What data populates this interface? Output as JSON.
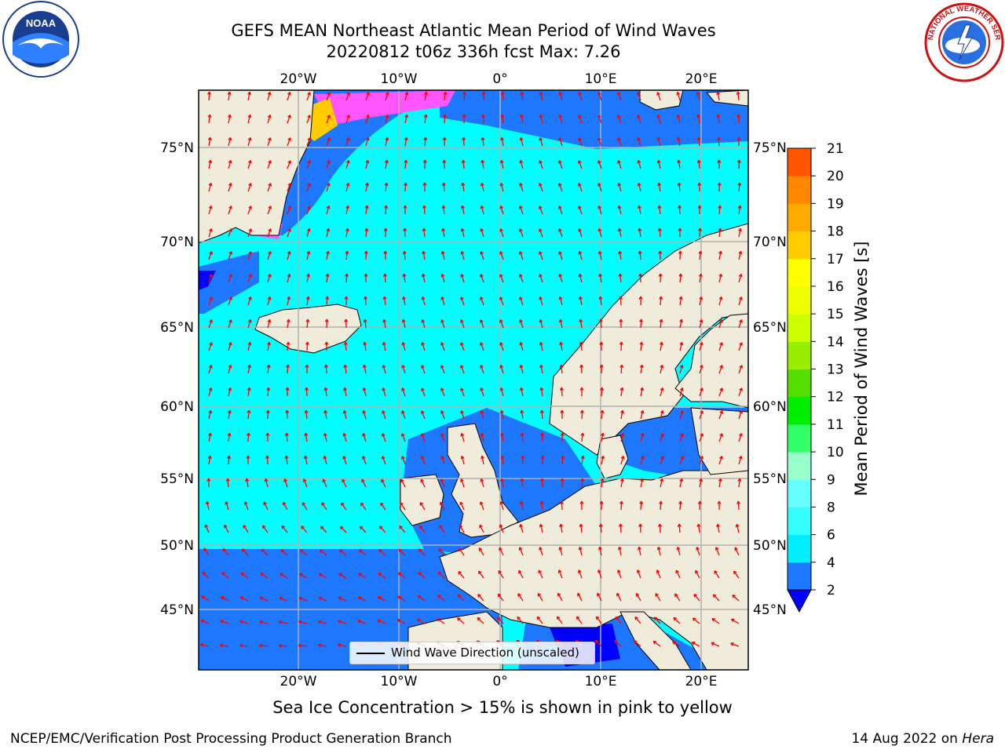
{
  "header": {
    "title_line1": "GEFS MEAN Northeast Atlantic Mean Period of Wind Waves",
    "title_line2": "20220812 t06z 336h fcst   Max: 7.26"
  },
  "logos": {
    "noaa": {
      "icon": "noaa-logo-icon",
      "text": "NOAA"
    },
    "nws": {
      "icon": "nws-logo-icon",
      "text": "NATIONAL WEATHER SERVICE"
    }
  },
  "map": {
    "lon_ticks": [
      "20°W",
      "10°W",
      "0°",
      "10°E",
      "20°E"
    ],
    "lat_ticks": [
      "75°N",
      "70°N",
      "65°N",
      "60°N",
      "55°N",
      "50°N",
      "45°N"
    ],
    "land_color": "#efecdb",
    "ocean_shallow_color": "#00ffff",
    "ocean_deep_color": "#1e78ff",
    "vector_color": "#ff0000",
    "ice_color": "#ff55ff"
  },
  "legend": {
    "label": "Wind Wave Direction (unscaled)"
  },
  "colorbar": {
    "title": "Mean Period of Wind Waves [s]",
    "ticks": [
      "2",
      "4",
      "6",
      "8",
      "9",
      "10",
      "11",
      "12",
      "13",
      "14",
      "15",
      "16",
      "17",
      "18",
      "19",
      "20",
      "21"
    ],
    "colors": [
      "#1e78ff",
      "#00eeff",
      "#33ffff",
      "#66ffff",
      "#99ffcc",
      "#33ff66",
      "#00ee00",
      "#55dd00",
      "#99ee00",
      "#ccff00",
      "#eeff00",
      "#ffff00",
      "#ffcc00",
      "#ffaa00",
      "#ff8800",
      "#ff5500",
      "#ff2200",
      "#ff0000"
    ],
    "underflow_color": "#0000ff"
  },
  "subtitle": "Sea Ice Concentration > 15% is shown in pink to yellow",
  "footer": {
    "left": "NCEP/EMC/Verification Post Processing Product Generation Branch",
    "right_prefix": "14 Aug 2022 on ",
    "right_host": "Hera"
  }
}
